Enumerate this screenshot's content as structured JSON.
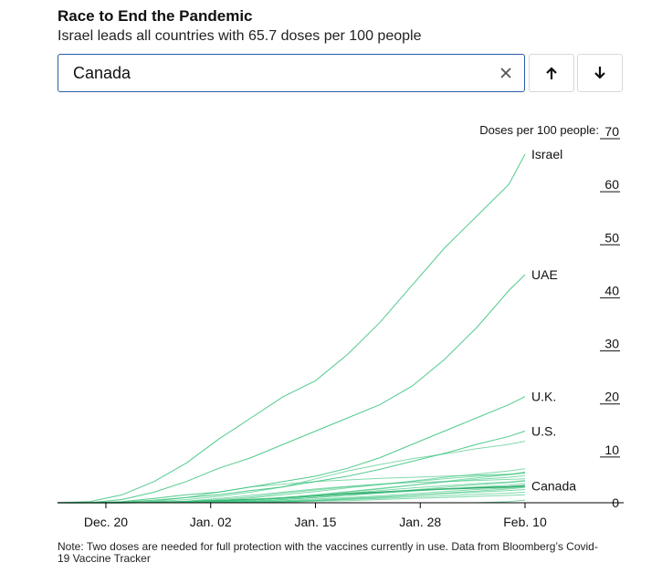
{
  "header": {
    "title": "Race to End the Pandemic",
    "subtitle": "Israel leads all countries with 65.7 doses per 100 people"
  },
  "search": {
    "value": "Canada",
    "clear_icon": "close-icon"
  },
  "nav": {
    "up_icon": "arrow-up-icon",
    "down_icon": "arrow-down-icon"
  },
  "note": "Note: Two doses are needed for full protection with the vaccines currently in use. Data from Bloomberg’s Covid-19 Vaccine Tracker",
  "colors": {
    "line": "#3ec47f",
    "highlight": "#1e9e5c",
    "axis": "#000000"
  },
  "chart_data": {
    "type": "line",
    "ylabel": "Doses per 100 people:",
    "ylim": [
      0,
      70
    ],
    "yticks": [
      "0",
      "10",
      "20",
      "30",
      "40",
      "50",
      "60",
      "70"
    ],
    "x": [
      "2020-12-14",
      "2020-12-18",
      "2020-12-22",
      "2020-12-26",
      "2020-12-30",
      "2021-01-03",
      "2021-01-07",
      "2021-01-11",
      "2021-01-15",
      "2021-01-19",
      "2021-01-23",
      "2021-01-27",
      "2021-01-31",
      "2021-02-04",
      "2021-02-08",
      "2021-02-10"
    ],
    "xticks": [
      "Dec. 20",
      "Jan. 02",
      "Jan. 15",
      "Jan. 28",
      "Feb. 10"
    ],
    "series": [
      {
        "name": "Israel",
        "values": [
          0,
          0.2,
          1.5,
          4,
          7.5,
          12,
          16,
          20,
          23,
          28,
          34,
          41,
          48,
          54,
          60,
          65.7
        ]
      },
      {
        "name": "UAE",
        "values": [
          0,
          0,
          0.6,
          2,
          4,
          6.5,
          8.5,
          11,
          13.5,
          16,
          18.5,
          22,
          27,
          33,
          40,
          43
        ]
      },
      {
        "name": "U.K.",
        "values": [
          0,
          0,
          0.2,
          0.8,
          1.5,
          2,
          3,
          4,
          5,
          6.5,
          8.5,
          11,
          13.5,
          16,
          18.5,
          20
        ]
      },
      {
        "name": "U.S.",
        "values": [
          0,
          0,
          0.1,
          0.5,
          1,
          1.5,
          2.3,
          3,
          4,
          5,
          6.3,
          7.8,
          9.3,
          11,
          12.5,
          13.5
        ]
      },
      {
        "name": "Canada",
        "values": [
          0,
          0,
          0,
          0.1,
          0.2,
          0.4,
          0.6,
          0.9,
          1.3,
          1.7,
          2,
          2.3,
          2.6,
          2.8,
          3,
          3.2
        ]
      },
      {
        "name": "",
        "values": [
          0,
          0,
          0,
          0,
          0.3,
          0.8,
          1.4,
          2,
          2.6,
          3.1,
          3.5,
          3.8,
          4,
          4.2,
          4.4,
          4.5
        ]
      },
      {
        "name": "",
        "values": [
          0,
          0,
          0,
          0,
          0.2,
          0.6,
          1.1,
          1.8,
          2.4,
          3,
          3.5,
          4,
          4.5,
          5,
          5.3,
          5.6
        ]
      },
      {
        "name": "",
        "values": [
          0,
          0,
          0,
          0,
          0.1,
          0.4,
          0.9,
          1.5,
          2.1,
          2.8,
          3.4,
          4.1,
          4.8,
          5.4,
          6,
          6.4
        ]
      },
      {
        "name": "",
        "values": [
          0,
          0,
          0,
          0,
          0.1,
          0.3,
          0.6,
          1,
          1.5,
          2.1,
          2.7,
          3.3,
          3.9,
          4.4,
          4.8,
          5.1
        ]
      },
      {
        "name": "",
        "values": [
          0,
          0,
          0,
          0,
          0,
          0.2,
          0.5,
          0.9,
          1.3,
          1.8,
          2.3,
          2.8,
          3.2,
          3.6,
          3.9,
          4.2
        ]
      },
      {
        "name": "",
        "values": [
          0,
          0,
          0,
          0,
          0,
          0.1,
          0.3,
          0.6,
          1,
          1.4,
          1.8,
          2.2,
          2.6,
          3,
          3.3,
          3.6
        ]
      },
      {
        "name": "",
        "values": [
          0,
          0,
          0,
          0,
          0,
          0.1,
          0.2,
          0.4,
          0.7,
          1,
          1.3,
          1.7,
          2.1,
          2.5,
          2.8,
          3
        ]
      },
      {
        "name": "",
        "values": [
          0,
          0,
          0,
          0,
          0,
          0,
          0.1,
          0.3,
          0.5,
          0.8,
          1.1,
          1.4,
          1.7,
          2,
          2.3,
          2.5
        ]
      },
      {
        "name": "",
        "values": [
          0,
          0,
          0,
          0,
          0,
          0,
          0.1,
          0.2,
          0.4,
          0.6,
          0.8,
          1.1,
          1.3,
          1.6,
          1.8,
          2
        ]
      },
      {
        "name": "",
        "values": [
          0,
          0,
          0,
          0,
          0,
          0,
          0,
          0.1,
          0.3,
          0.4,
          0.6,
          0.8,
          1,
          1.2,
          1.4,
          1.5
        ]
      },
      {
        "name": "",
        "values": [
          0,
          0,
          0,
          0.3,
          1,
          2,
          3,
          3.5,
          4,
          4.3,
          4.6,
          4.8,
          5,
          5.2,
          5.4,
          5.6
        ]
      },
      {
        "name": "",
        "values": [
          0,
          0,
          0,
          0.2,
          0.6,
          1.2,
          2,
          3,
          4.5,
          6,
          7.2,
          8.3,
          9.2,
          10.2,
          11,
          11.6
        ]
      },
      {
        "name": "",
        "values": [
          0,
          0,
          0,
          0,
          0,
          0,
          0,
          0,
          0,
          0,
          0,
          0,
          0,
          0,
          0.2,
          0.5
        ]
      },
      {
        "name": "",
        "values": [
          0,
          0,
          0,
          0,
          0,
          0.1,
          0.3,
          0.6,
          1,
          1.4,
          1.9,
          2.4,
          2.9,
          3.4,
          3.8,
          4.1
        ]
      },
      {
        "name": "",
        "values": [
          0,
          0,
          0,
          0,
          0.1,
          0.2,
          0.5,
          0.9,
          1.4,
          2,
          2.6,
          3.3,
          4,
          4.7,
          5.3,
          5.8
        ]
      },
      {
        "name": "",
        "values": [
          0,
          0,
          0,
          0,
          0,
          0,
          0.1,
          0.2,
          0.4,
          0.7,
          1,
          1.4,
          1.8,
          2.2,
          2.6,
          2.9
        ]
      }
    ]
  }
}
